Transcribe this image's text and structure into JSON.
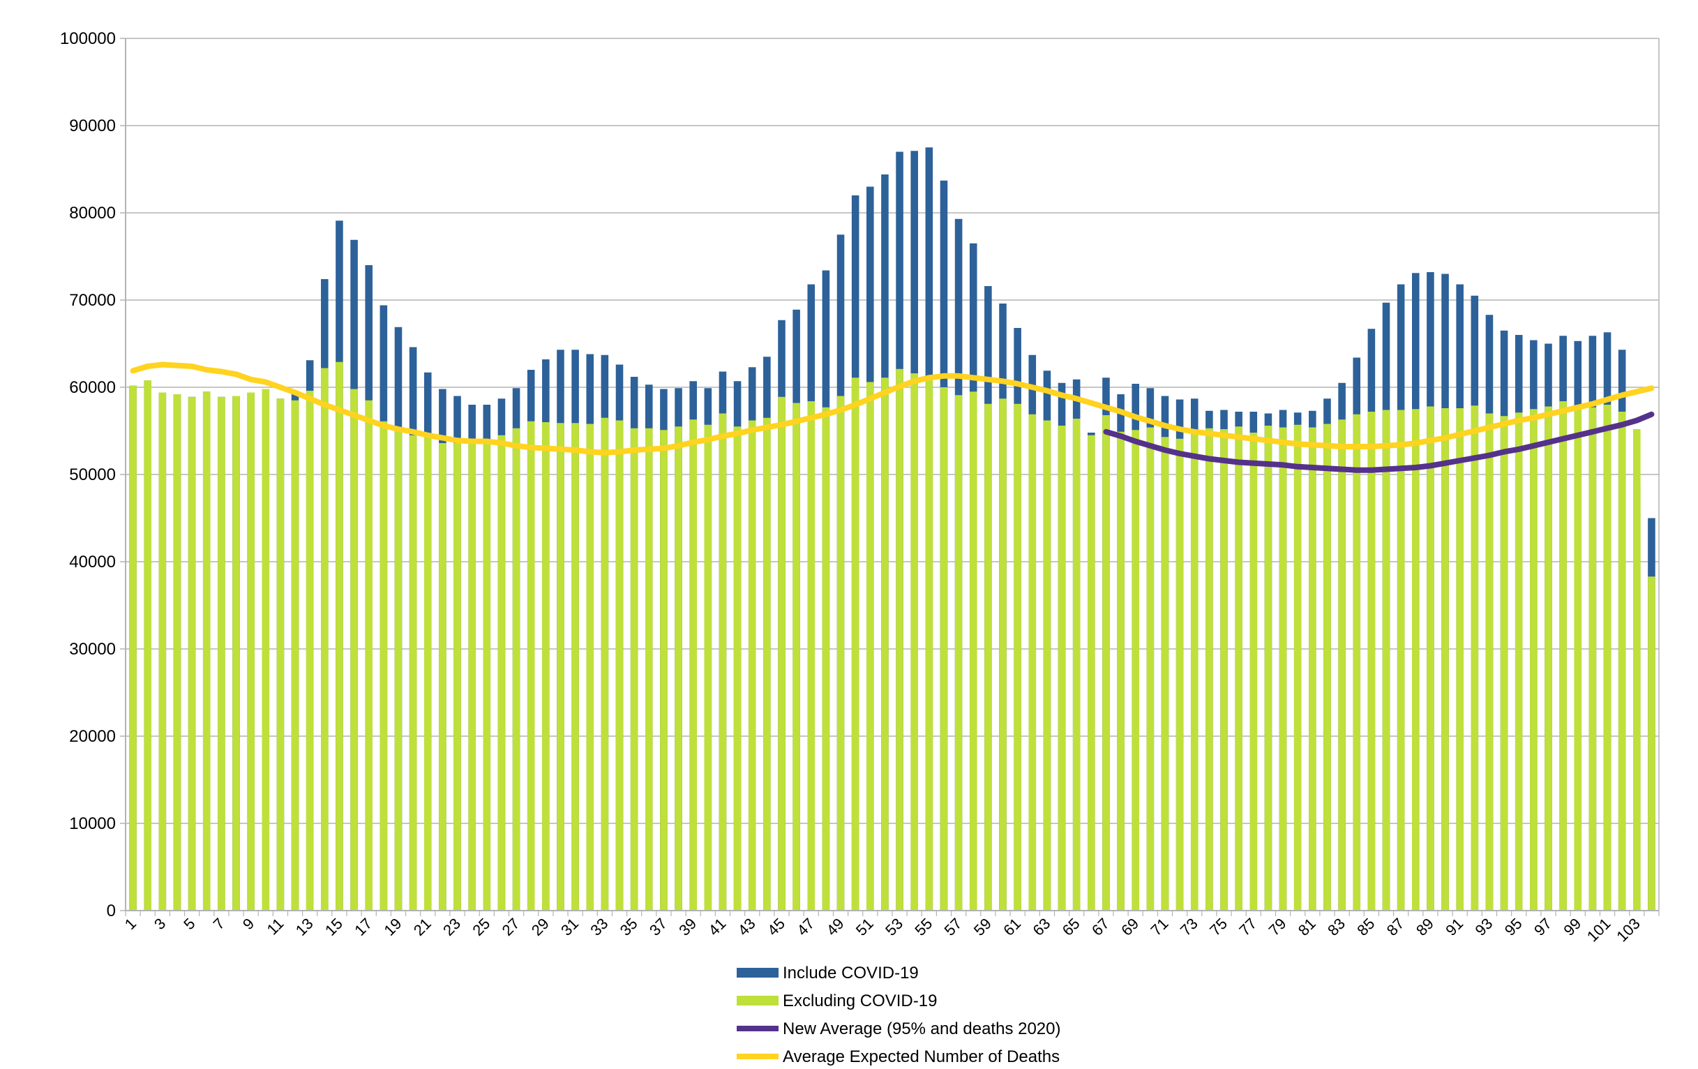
{
  "chart_data": {
    "type": "bar",
    "stacked_overlay": true,
    "x": [
      1,
      2,
      3,
      4,
      5,
      6,
      7,
      8,
      9,
      10,
      11,
      12,
      13,
      14,
      15,
      16,
      17,
      18,
      19,
      20,
      21,
      22,
      23,
      24,
      25,
      26,
      27,
      28,
      29,
      30,
      31,
      32,
      33,
      34,
      35,
      36,
      37,
      38,
      39,
      40,
      41,
      42,
      43,
      44,
      45,
      46,
      47,
      48,
      49,
      50,
      51,
      52,
      53,
      54,
      55,
      56,
      57,
      58,
      59,
      60,
      61,
      62,
      63,
      64,
      65,
      66,
      67,
      68,
      69,
      70,
      71,
      72,
      73,
      74,
      75,
      76,
      77,
      78,
      79,
      80,
      81,
      82,
      83,
      84,
      85,
      86,
      87,
      88,
      89,
      90,
      91,
      92,
      93,
      94,
      95,
      96,
      97,
      98,
      99,
      100,
      101,
      102,
      103,
      104
    ],
    "x_tick_labels": [
      "1",
      "3",
      "5",
      "7",
      "9",
      "11",
      "13",
      "15",
      "17",
      "19",
      "21",
      "23",
      "25",
      "27",
      "29",
      "31",
      "33",
      "35",
      "37",
      "39",
      "41",
      "43",
      "45",
      "47",
      "49",
      "51",
      "53",
      "55",
      "57",
      "59",
      "61",
      "63",
      "65",
      "67",
      "69",
      "71",
      "73",
      "75",
      "77",
      "79",
      "81",
      "83",
      "85",
      "87",
      "89",
      "91",
      "93",
      "95",
      "97",
      "99",
      "101",
      "103"
    ],
    "y_tick_labels": [
      "0",
      "10000",
      "20000",
      "30000",
      "40000",
      "50000",
      "60000",
      "70000",
      "80000",
      "90000",
      "100000"
    ],
    "ylim": [
      0,
      100000
    ],
    "grid": true,
    "legend_position": "bottom",
    "series": [
      {
        "name": "Include COVID-19",
        "kind": "bar",
        "color": "#2d6199",
        "values": [
          60200,
          60800,
          59400,
          59200,
          58900,
          59500,
          58900,
          59000,
          59400,
          59800,
          58700,
          59200,
          63100,
          72400,
          79100,
          76900,
          74000,
          69400,
          66900,
          64600,
          61700,
          59800,
          59000,
          58000,
          58000,
          58700,
          59900,
          62000,
          63200,
          64300,
          64300,
          63800,
          63700,
          62600,
          61200,
          60300,
          59800,
          59900,
          60700,
          59900,
          61800,
          60700,
          62300,
          63500,
          67700,
          68900,
          71800,
          73400,
          77500,
          82000,
          83000,
          84400,
          87000,
          87100,
          87500,
          83700,
          79300,
          76500,
          71600,
          69600,
          66800,
          63700,
          61900,
          60500,
          60900,
          54800,
          61100,
          59200,
          60400,
          59900,
          59000,
          58600,
          58700,
          57300,
          57400,
          57200,
          57200,
          57000,
          57400,
          57100,
          57300,
          58700,
          60500,
          63400,
          66700,
          69700,
          71800,
          73100,
          73200,
          73000,
          71800,
          70500,
          68300,
          66500,
          66000,
          65400,
          65000,
          65900,
          65300,
          65900,
          66300,
          64300,
          48600,
          45000
        ]
      },
      {
        "name": "Excluding COVID-19",
        "kind": "bar",
        "color": "#bfe03a",
        "values": [
          60200,
          60800,
          59400,
          59200,
          58900,
          59500,
          58900,
          59000,
          59400,
          59800,
          58700,
          58500,
          59600,
          62200,
          62900,
          59800,
          58500,
          56100,
          55200,
          54500,
          54700,
          53600,
          53600,
          53900,
          53500,
          54500,
          55300,
          56100,
          56000,
          55900,
          55900,
          55800,
          56500,
          56200,
          55300,
          55300,
          55100,
          55500,
          56300,
          55700,
          57000,
          55500,
          56200,
          56500,
          58900,
          58200,
          58400,
          57700,
          59000,
          61100,
          60600,
          61100,
          62100,
          61600,
          61200,
          60000,
          59100,
          59500,
          58100,
          58700,
          58100,
          56900,
          56200,
          55600,
          56400,
          54500,
          56800,
          54900,
          55100,
          55400,
          54300,
          54100,
          54800,
          55300,
          55200,
          55500,
          54800,
          55600,
          55400,
          55700,
          55400,
          55800,
          56300,
          56900,
          57200,
          57400,
          57400,
          57500,
          57800,
          57600,
          57600,
          57900,
          57000,
          56700,
          57100,
          57500,
          57800,
          58400,
          57600,
          57700,
          58000,
          57200,
          55200,
          38300
        ]
      },
      {
        "name": "New Average (95% and deaths 2020)",
        "kind": "line",
        "color": "#54328a",
        "x": [
          67,
          68,
          69,
          70,
          71,
          72,
          73,
          74,
          75,
          76,
          77,
          78,
          79,
          80,
          81,
          82,
          83,
          84,
          85,
          86,
          87,
          88,
          89,
          90,
          91,
          92,
          93,
          94,
          95,
          96,
          97,
          98,
          99,
          100,
          101,
          102,
          103,
          104
        ],
        "values": [
          54900,
          54400,
          53800,
          53300,
          52800,
          52400,
          52100,
          51800,
          51600,
          51400,
          51300,
          51200,
          51100,
          50900,
          50800,
          50700,
          50600,
          50500,
          50500,
          50600,
          50700,
          50800,
          51000,
          51300,
          51600,
          51900,
          52200,
          52600,
          52900,
          53300,
          53700,
          54100,
          54500,
          54900,
          55300,
          55700,
          56200,
          56900
        ]
      },
      {
        "name": "Average Expected Number of Deaths",
        "kind": "line",
        "color": "#ffd31f",
        "values": [
          61900,
          62400,
          62600,
          62500,
          62400,
          62000,
          61800,
          61500,
          60900,
          60600,
          60000,
          59400,
          58700,
          58000,
          57400,
          56800,
          56200,
          55600,
          55200,
          54900,
          54500,
          54200,
          53900,
          53800,
          53800,
          53600,
          53300,
          53100,
          53000,
          52900,
          52800,
          52600,
          52500,
          52600,
          52800,
          52900,
          53000,
          53300,
          53700,
          54000,
          54400,
          54700,
          55100,
          55400,
          55700,
          56100,
          56500,
          56900,
          57400,
          58000,
          58700,
          59400,
          60100,
          60700,
          61100,
          61300,
          61300,
          61100,
          60900,
          60700,
          60400,
          60000,
          59600,
          59100,
          58700,
          58200,
          57700,
          57200,
          56600,
          56100,
          55600,
          55200,
          54900,
          54700,
          54500,
          54300,
          54100,
          53900,
          53700,
          53500,
          53400,
          53300,
          53200,
          53200,
          53200,
          53300,
          53400,
          53600,
          53900,
          54200,
          54600,
          55000,
          55400,
          55800,
          56200,
          56500,
          56900,
          57300,
          57700,
          58100,
          58600,
          59100,
          59500,
          59900
        ]
      }
    ]
  },
  "legend": {
    "items": [
      {
        "label": "Include COVID-19",
        "color": "#2d6199"
      },
      {
        "label": "Excluding COVID-19",
        "color": "#bfe03a"
      },
      {
        "label": "New Average (95% and deaths 2020)",
        "color": "#54328a"
      },
      {
        "label": "Average Expected Number of Deaths",
        "color": "#ffd31f"
      }
    ]
  }
}
